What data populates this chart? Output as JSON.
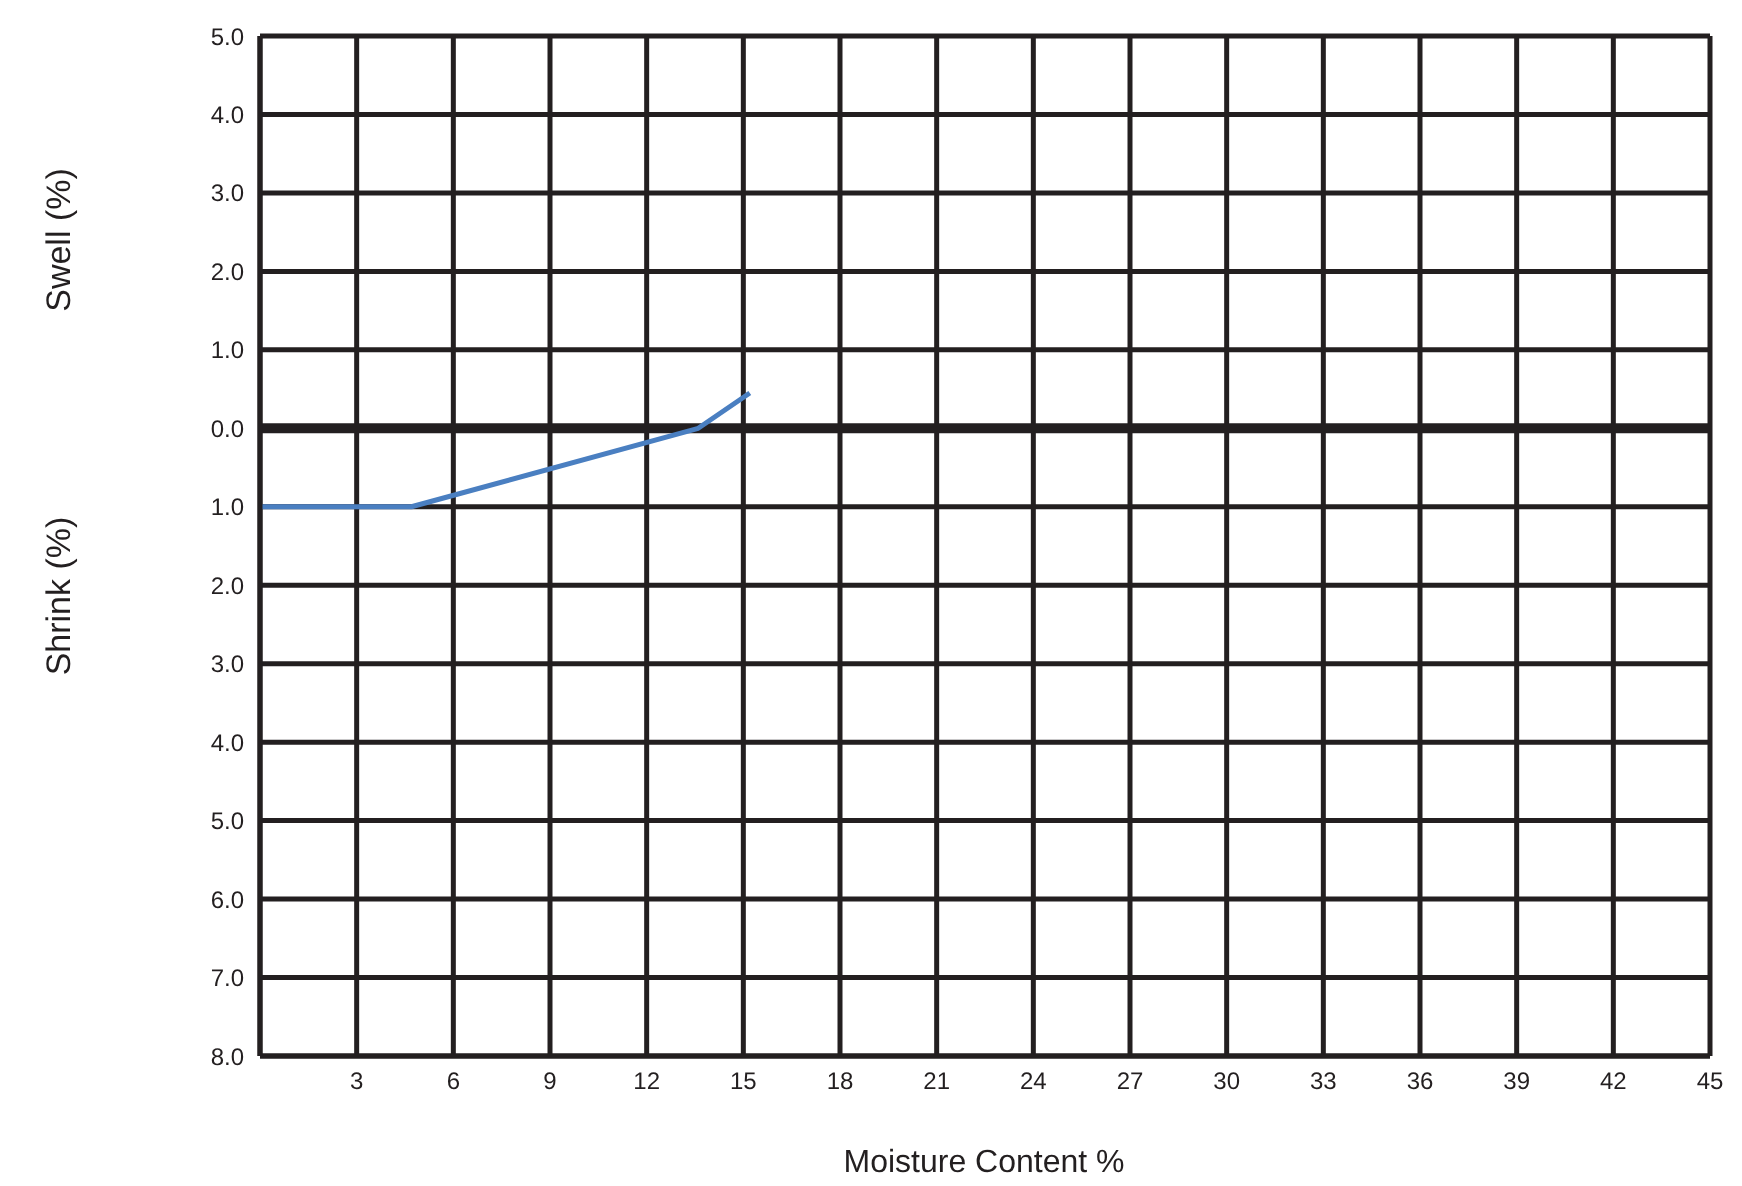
{
  "chart_data": {
    "type": "line",
    "xlabel": "Moisture Content %",
    "ylabel": "Swell (%)",
    "annotations": [
      "Shrink (%)"
    ],
    "series": [
      {
        "color": "#4a7fc1",
        "x": [
          0,
          4.7,
          13.6,
          15.2
        ],
        "values": [
          -1.0,
          -1.0,
          0.0,
          0.45
        ]
      }
    ],
    "xlim": [
      0,
      45
    ],
    "xticks": [
      3,
      6,
      9,
      12,
      15,
      18,
      21,
      24,
      27,
      30,
      33,
      36,
      39,
      42,
      45
    ],
    "ylim": [
      -8,
      5
    ],
    "yticks": [
      {
        "value": 5,
        "label": "5.0"
      },
      {
        "value": 4,
        "label": "4.0"
      },
      {
        "value": 3,
        "label": "3.0"
      },
      {
        "value": 2,
        "label": "2.0"
      },
      {
        "value": 1,
        "label": "1.0"
      },
      {
        "value": 0,
        "label": "0.0"
      },
      {
        "value": -1,
        "label": "1.0"
      },
      {
        "value": -2,
        "label": "2.0"
      },
      {
        "value": -3,
        "label": "3.0"
      },
      {
        "value": -4,
        "label": "4.0"
      },
      {
        "value": -5,
        "label": "5.0"
      },
      {
        "value": -6,
        "label": "6.0"
      },
      {
        "value": -7,
        "label": "7.0"
      },
      {
        "value": -8,
        "label": "8.0"
      }
    ],
    "ref_lines": [
      {
        "axis": "y",
        "value": 0,
        "color": "#231f20"
      }
    ],
    "grid": true,
    "marker": "none",
    "line_style": "solid"
  }
}
